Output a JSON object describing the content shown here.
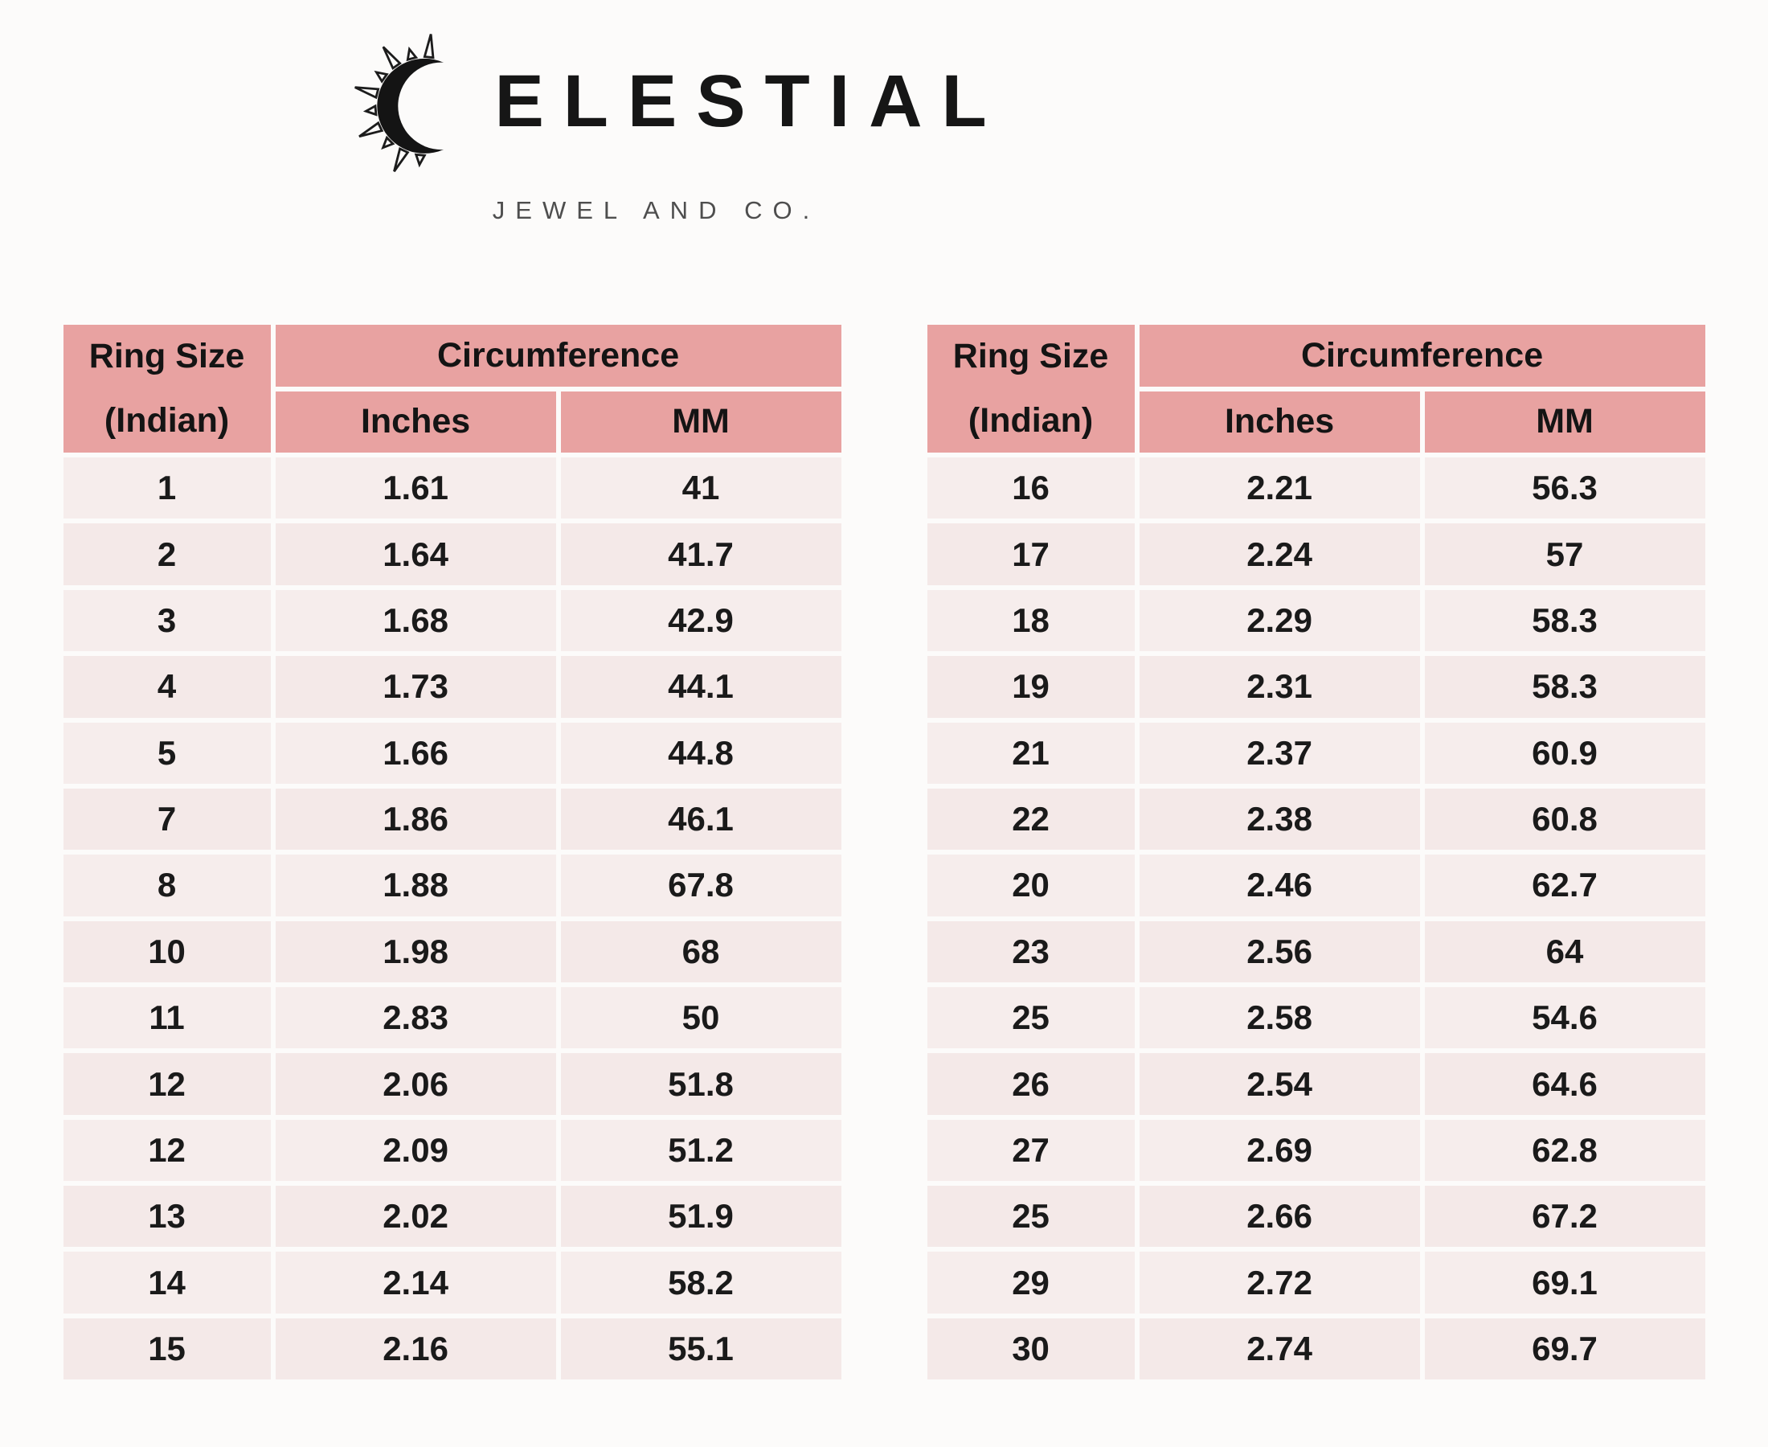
{
  "logo": {
    "icon": "crescent-sun-icon",
    "wordmark_after_icon": "ELESTIAL",
    "wordmark_full": "CELESTIAL",
    "subtitle": "JEWEL AND CO."
  },
  "table_headers": {
    "ring_size_line1": "Ring Size",
    "ring_size_line2": "(Indian)",
    "circumference": "Circumference",
    "inches": "Inches",
    "mm": "MM"
  },
  "colors": {
    "header_pink": "#e8a2a1",
    "row_pink": "#f6edec",
    "text": "#1a1a1a",
    "background": "#fcfbfa"
  },
  "chart_data": [
    {
      "type": "table",
      "columns": [
        "Ring Size (Indian)",
        "Circumference Inches",
        "Circumference MM"
      ],
      "rows": [
        [
          "1",
          "1.61",
          "41"
        ],
        [
          "2",
          "1.64",
          "41.7"
        ],
        [
          "3",
          "1.68",
          "42.9"
        ],
        [
          "4",
          "1.73",
          "44.1"
        ],
        [
          "5",
          "1.66",
          "44.8"
        ],
        [
          "7",
          "1.86",
          "46.1"
        ],
        [
          "8",
          "1.88",
          "67.8"
        ],
        [
          "10",
          "1.98",
          "68"
        ],
        [
          "11",
          "2.83",
          "50"
        ],
        [
          "12",
          "2.06",
          "51.8"
        ],
        [
          "12",
          "2.09",
          "51.2"
        ],
        [
          "13",
          "2.02",
          "51.9"
        ],
        [
          "14",
          "2.14",
          "58.2"
        ],
        [
          "15",
          "2.16",
          "55.1"
        ]
      ]
    },
    {
      "type": "table",
      "columns": [
        "Ring Size (Indian)",
        "Circumference Inches",
        "Circumference MM"
      ],
      "rows": [
        [
          "16",
          "2.21",
          "56.3"
        ],
        [
          "17",
          "2.24",
          "57"
        ],
        [
          "18",
          "2.29",
          "58.3"
        ],
        [
          "19",
          "2.31",
          "58.3"
        ],
        [
          "21",
          "2.37",
          "60.9"
        ],
        [
          "22",
          "2.38",
          "60.8"
        ],
        [
          "20",
          "2.46",
          "62.7"
        ],
        [
          "23",
          "2.56",
          "64"
        ],
        [
          "25",
          "2.58",
          "54.6"
        ],
        [
          "26",
          "2.54",
          "64.6"
        ],
        [
          "27",
          "2.69",
          "62.8"
        ],
        [
          "25",
          "2.66",
          "67.2"
        ],
        [
          "29",
          "2.72",
          "69.1"
        ],
        [
          "30",
          "2.74",
          "69.7"
        ]
      ]
    }
  ]
}
